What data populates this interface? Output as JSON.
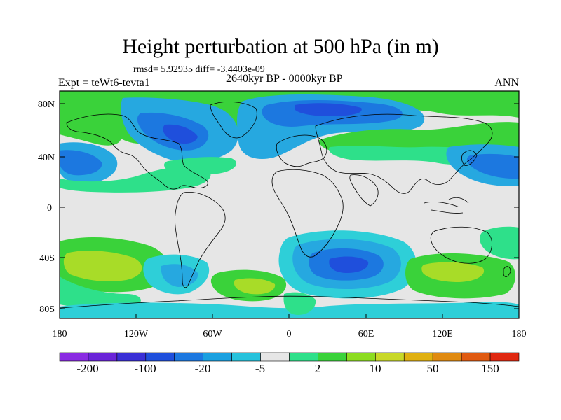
{
  "title": "Height perturbation at 500 hPa (in m)",
  "stats_line": "rmsd= 5.92935 diff= -3.4403e-09",
  "experiment": "Expt = teWt6-tevta1",
  "period": "2640kyr BP - 0000kyr BP",
  "season": "ANN",
  "lat_ticks": [
    "80N",
    "40N",
    "0",
    "40S",
    "80S"
  ],
  "lon_ticks": [
    "180",
    "120W",
    "60W",
    "0",
    "60E",
    "120E",
    "180"
  ],
  "colorbar": {
    "labels": [
      "-200",
      "-100",
      "-20",
      "-5",
      "2",
      "10",
      "50",
      "150"
    ],
    "colors": [
      "#8a2be2",
      "#6a24d8",
      "#3a2fd6",
      "#1f4fdc",
      "#1c78e0",
      "#1aa0e0",
      "#26c2dc",
      "#e6e6e6",
      "#2ee08a",
      "#3ad23a",
      "#8cdc20",
      "#c8d828",
      "#e0b010",
      "#e08a10",
      "#e05a10",
      "#e02810"
    ]
  },
  "palette": {
    "background": "#e6e6e6",
    "deep_blue": "#1f4fdc",
    "mid_blue": "#1c78e0",
    "light_blue": "#26a8e0",
    "cyan": "#2ecfd8",
    "teal": "#2ee08a",
    "green": "#3ad23a",
    "yellow_green": "#a8dc28"
  }
}
